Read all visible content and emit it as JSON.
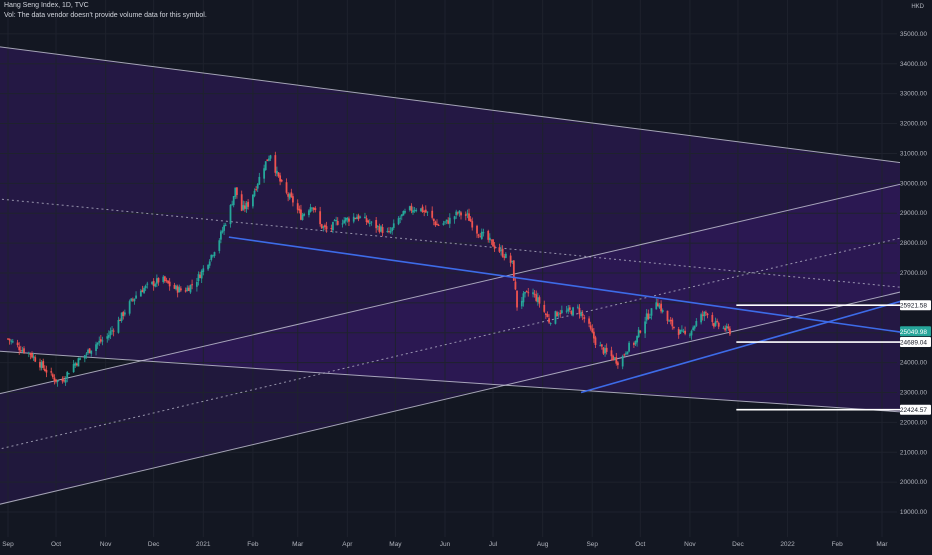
{
  "header": {
    "symbol_line": "Hang Seng Index, 1D, TVC",
    "vol_note": "Vol: The data vendor doesn't provide volume data for this symbol.",
    "currency": "HKD"
  },
  "colors": {
    "background": "#131722",
    "up": "#26a69a",
    "down": "#ef5350",
    "channel_fill": "#3a1a6e",
    "trendline": "#3d6be8",
    "channel_line": "#c8c8d8",
    "last_price_bg": "#26a69a"
  },
  "chart_data": {
    "type": "candlestick",
    "ylim": [
      18500,
      35800
    ],
    "y_ticks": [
      19000,
      20000,
      21000,
      22000,
      23000,
      24000,
      25000,
      26000,
      27000,
      28000,
      29000,
      30000,
      31000,
      32000,
      33000,
      34000,
      35000
    ],
    "y_tick_labels": [
      "19000.00",
      "20000.00",
      "21000.00",
      "22000.00",
      "23000.00",
      "24000.00",
      "25000.00",
      "26000.00",
      "27000.00",
      "28000.00",
      "29000.00",
      "30000.00",
      "31000.00",
      "32000.00",
      "33000.00",
      "34000.00",
      "35000.00"
    ],
    "x_labels": [
      "Sep",
      "Oct",
      "Nov",
      "Dec",
      "2021",
      "Feb",
      "Mar",
      "Apr",
      "May",
      "Jun",
      "Jul",
      "Aug",
      "Sep",
      "Oct",
      "Nov",
      "Dec",
      "2022",
      "Feb",
      "Mar"
    ],
    "x_label_anchor_day": [
      0,
      30,
      61,
      91,
      122,
      153,
      181,
      212,
      242,
      273,
      303,
      334,
      365,
      395,
      426,
      456,
      487,
      518,
      546
    ],
    "x_start": "2020-09-01",
    "last_candle_day": 451,
    "price_path": [
      [
        0,
        24800
      ],
      [
        7,
        24500
      ],
      [
        14,
        24300
      ],
      [
        21,
        23900
      ],
      [
        28,
        23500
      ],
      [
        33,
        23300
      ],
      [
        40,
        23900
      ],
      [
        47,
        24200
      ],
      [
        54,
        24600
      ],
      [
        61,
        24800
      ],
      [
        68,
        25300
      ],
      [
        75,
        25900
      ],
      [
        82,
        26400
      ],
      [
        89,
        26600
      ],
      [
        96,
        26800
      ],
      [
        103,
        26500
      ],
      [
        110,
        26400
      ],
      [
        117,
        26700
      ],
      [
        124,
        27300
      ],
      [
        131,
        28000
      ],
      [
        138,
        29000
      ],
      [
        142,
        29800
      ],
      [
        146,
        29100
      ],
      [
        150,
        29300
      ],
      [
        155,
        29900
      ],
      [
        160,
        30600
      ],
      [
        164,
        31000
      ],
      [
        168,
        30300
      ],
      [
        173,
        29700
      ],
      [
        178,
        29400
      ],
      [
        183,
        28900
      ],
      [
        190,
        29300
      ],
      [
        195,
        28600
      ],
      [
        200,
        28400
      ],
      [
        205,
        28700
      ],
      [
        212,
        28800
      ],
      [
        218,
        28900
      ],
      [
        225,
        28700
      ],
      [
        232,
        28500
      ],
      [
        238,
        28300
      ],
      [
        244,
        28800
      ],
      [
        250,
        29100
      ],
      [
        256,
        29200
      ],
      [
        262,
        29000
      ],
      [
        268,
        28600
      ],
      [
        274,
        28700
      ],
      [
        281,
        29000
      ],
      [
        287,
        28900
      ],
      [
        293,
        28400
      ],
      [
        298,
        28200
      ],
      [
        304,
        27900
      ],
      [
        310,
        27600
      ],
      [
        315,
        27300
      ],
      [
        318,
        25900
      ],
      [
        322,
        26200
      ],
      [
        327,
        26400
      ],
      [
        332,
        26000
      ],
      [
        338,
        25400
      ],
      [
        344,
        25700
      ],
      [
        350,
        25700
      ],
      [
        356,
        25800
      ],
      [
        362,
        25300
      ],
      [
        367,
        24700
      ],
      [
        372,
        24400
      ],
      [
        377,
        24200
      ],
      [
        382,
        24000
      ],
      [
        387,
        24500
      ],
      [
        392,
        24700
      ],
      [
        397,
        25400
      ],
      [
        402,
        25700
      ],
      [
        405,
        26100
      ],
      [
        408,
        25800
      ],
      [
        412,
        25400
      ],
      [
        416,
        25200
      ],
      [
        420,
        25000
      ],
      [
        424,
        24900
      ],
      [
        428,
        25200
      ],
      [
        432,
        25500
      ],
      [
        437,
        25700
      ],
      [
        441,
        25300
      ],
      [
        445,
        25200
      ],
      [
        451,
        25049.98
      ]
    ],
    "price_labels": [
      {
        "value": 25921.58,
        "label": "25921.58"
      },
      {
        "value": 25049.98,
        "label": "25049.98",
        "last": true
      },
      {
        "value": 24689.04,
        "label": "24689.04"
      },
      {
        "value": 22424.57,
        "label": "22424.57"
      }
    ],
    "drawings": {
      "channel_lines": [
        [
          [
            -10,
            34600
          ],
          [
            600,
            30400
          ]
        ],
        [
          [
            -10,
            24400
          ],
          [
            600,
            22200
          ]
        ],
        [
          [
            -10,
            22900
          ],
          [
            600,
            30500
          ]
        ],
        [
          [
            -10,
            19200
          ],
          [
            600,
            26900
          ]
        ]
      ],
      "trendlines": [
        [
          [
            138,
            28200
          ],
          [
            600,
            24700
          ]
        ],
        [
          [
            358,
            23000
          ],
          [
            600,
            26700
          ]
        ]
      ],
      "horizontal_rays": [
        [
          [
            455,
            25921.58
          ]
        ],
        [
          [
            455,
            24689.04
          ]
        ],
        [
          [
            455,
            22424.57
          ]
        ]
      ]
    }
  }
}
